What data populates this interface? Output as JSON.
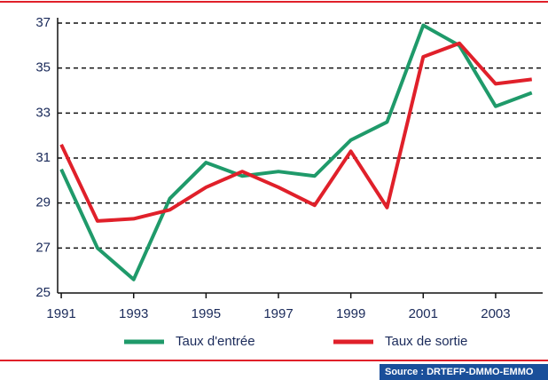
{
  "chart_data": {
    "type": "line",
    "x": [
      1991,
      1992,
      1993,
      1994,
      1995,
      1996,
      1997,
      1998,
      1999,
      2000,
      2001,
      2002,
      2003,
      2004
    ],
    "series": [
      {
        "name": "Taux d'entrée",
        "color": "#1f9a6a",
        "values": [
          30.5,
          27.0,
          25.6,
          29.2,
          30.8,
          30.2,
          30.4,
          30.2,
          31.8,
          32.6,
          36.9,
          36.0,
          33.3,
          33.9
        ]
      },
      {
        "name": "Taux de sortie",
        "color": "#e0202a",
        "values": [
          31.6,
          28.2,
          28.3,
          28.7,
          29.7,
          30.4,
          29.7,
          28.9,
          31.3,
          28.8,
          35.5,
          36.1,
          34.3,
          34.5
        ]
      }
    ],
    "xlim": [
      1990.9,
      2004.3
    ],
    "xticks": [
      1991,
      1993,
      1995,
      1997,
      1999,
      2001,
      2003
    ],
    "ylim": [
      25,
      37
    ],
    "yticks": [
      25,
      27,
      29,
      31,
      33,
      35,
      37
    ],
    "grid": true,
    "source": "Source : DRTEFP-DMMO-EMMO"
  }
}
